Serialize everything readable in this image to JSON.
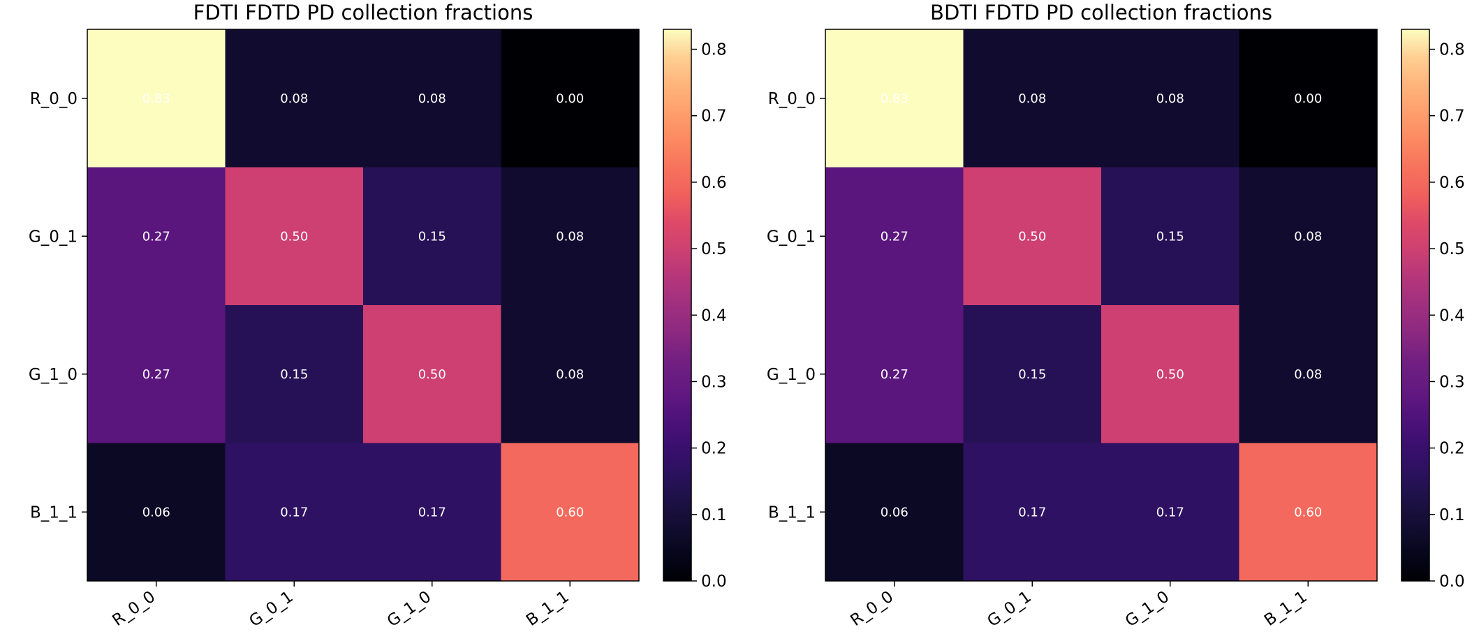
{
  "chart_data": [
    {
      "type": "heatmap",
      "title": "FDTI FDTD PD collection fractions",
      "rows": [
        "R_0_0",
        "G_0_1",
        "G_1_0",
        "B_1_1"
      ],
      "columns": [
        "R_0_0",
        "G_0_1",
        "G_1_0",
        "B_1_1"
      ],
      "values": [
        [
          0.83,
          0.08,
          0.08,
          0.0
        ],
        [
          0.27,
          0.5,
          0.15,
          0.08
        ],
        [
          0.27,
          0.15,
          0.5,
          0.08
        ],
        [
          0.06,
          0.17,
          0.17,
          0.6
        ]
      ],
      "colormap": "magma",
      "colorbar": {
        "range": [
          0,
          0.83
        ],
        "ticks": [
          "0.0",
          "0.1",
          "0.2",
          "0.3",
          "0.4",
          "0.5",
          "0.6",
          "0.7",
          "0.8"
        ]
      },
      "xlabel": "",
      "ylabel": ""
    },
    {
      "type": "heatmap",
      "title": "BDTI FDTD PD collection fractions",
      "rows": [
        "R_0_0",
        "G_0_1",
        "G_1_0",
        "B_1_1"
      ],
      "columns": [
        "R_0_0",
        "G_0_1",
        "G_1_0",
        "B_1_1"
      ],
      "values": [
        [
          0.83,
          0.08,
          0.08,
          0.0
        ],
        [
          0.27,
          0.5,
          0.15,
          0.08
        ],
        [
          0.27,
          0.15,
          0.5,
          0.08
        ],
        [
          0.06,
          0.17,
          0.17,
          0.6
        ]
      ],
      "colormap": "magma",
      "colorbar": {
        "range": [
          0,
          0.83
        ],
        "ticks": [
          "0.0",
          "0.1",
          "0.2",
          "0.3",
          "0.4",
          "0.5",
          "0.6",
          "0.7",
          "0.8"
        ]
      },
      "xlabel": "",
      "ylabel": ""
    }
  ]
}
